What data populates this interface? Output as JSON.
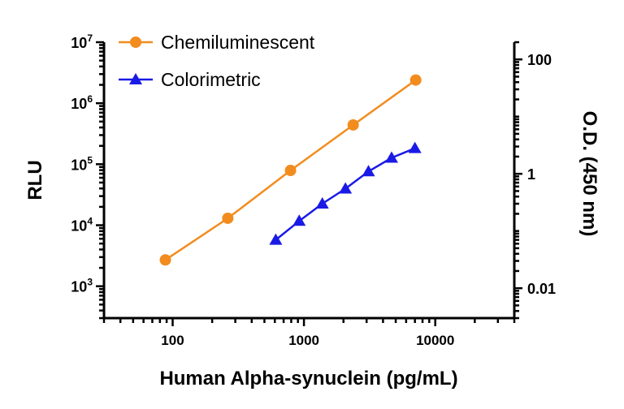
{
  "chart_data": {
    "type": "line",
    "xlabel": "Human Alpha-synuclein (pg/mL)",
    "ylabel": "RLU",
    "y2label": "O.D. (450 nm)",
    "x_scale": "log",
    "y_scale": "log",
    "y2_scale": "log",
    "xlim": [
      30,
      40000
    ],
    "ylim": [
      300,
      10000000
    ],
    "y2lim": [
      0.003,
      200
    ],
    "x_ticks": [
      {
        "value": 100,
        "label": "100"
      },
      {
        "value": 1000,
        "label": "1000"
      },
      {
        "value": 10000,
        "label": "10000"
      }
    ],
    "y_ticks": [
      {
        "value": 1000,
        "base": "10",
        "exp": "3"
      },
      {
        "value": 10000,
        "base": "10",
        "exp": "4"
      },
      {
        "value": 100000,
        "base": "10",
        "exp": "5"
      },
      {
        "value": 1000000,
        "base": "10",
        "exp": "6"
      },
      {
        "value": 10000000,
        "base": "10",
        "exp": "7"
      }
    ],
    "y2_ticks": [
      {
        "value": 0.01,
        "label": "0.01"
      },
      {
        "value": 1,
        "label": "1"
      },
      {
        "value": 100,
        "label": "100"
      }
    ],
    "grid": false,
    "legend_position": "top-left",
    "series": [
      {
        "name": "Chemiluminescent",
        "axis": "left",
        "color": "#F28C1E",
        "marker": "circle",
        "x": [
          88,
          263,
          790,
          2370,
          7100
        ],
        "y": [
          2700,
          13000,
          79000,
          440000,
          2400000
        ]
      },
      {
        "name": "Colorimetric",
        "axis": "right",
        "color": "#1A1AE6",
        "marker": "triangle",
        "x": [
          610,
          920,
          1380,
          2070,
          3100,
          4650,
          7000
        ],
        "y": [
          0.07,
          0.15,
          0.3,
          0.55,
          1.1,
          1.9,
          2.8
        ]
      }
    ]
  }
}
